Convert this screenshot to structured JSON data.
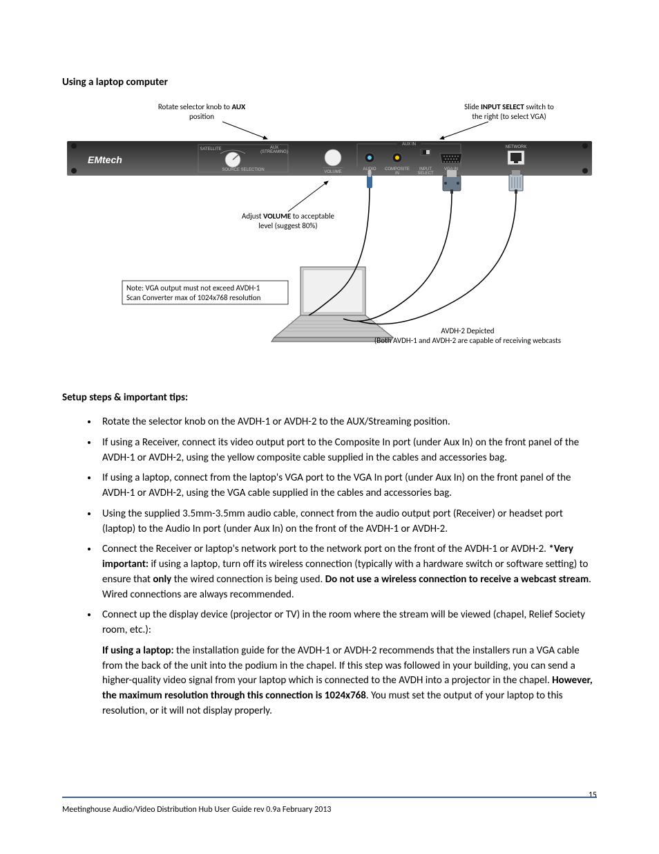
{
  "heading": "Using a laptop computer",
  "diagram": {
    "callouts": {
      "aux_line1": "Rotate selector knob to ",
      "aux_bold": "AUX",
      "aux_line2": "position",
      "input_line1": "Slide ",
      "input_bold": "INPUT SELECT",
      "input_line1b": " switch to",
      "input_line2": "the right (to select VGA)",
      "volume_line1": "Adjust ",
      "volume_bold": "VOLUME",
      "volume_line1b": " to acceptable",
      "volume_line2": "level (suggest 80%)",
      "note_line1": "Note:  VGA output must not exceed AVDH-1",
      "note_line2": "Scan Converter max of 1024x768 resolution",
      "depicted_title": "AVDH-2 Depicted",
      "depicted_sub": "(Both AVDH-1 and AVDH-2 are capable of receiving webcasts"
    },
    "panel": {
      "brand": "EMtech",
      "labels": {
        "satellite": "SATELLITE",
        "aux_streaming_top": "AUX",
        "aux_streaming_bot": "(STREAMING)",
        "source_selection": "SOURCE SELECTION",
        "volume": "VOLUME",
        "audio_in": "AUDIO",
        "audio_in2": "IN",
        "composite_in": "COMPOSITE",
        "composite_in2": "IN",
        "input_select": "INPUT",
        "input_select2": "SELECT",
        "aux_in": "AUX IN",
        "vga_in": "VGA IN",
        "network": "NETWORK"
      },
      "colors": {
        "panel_top": "#2a2a2a",
        "panel_bottom": "#6b6b6b",
        "knob": "#f0f0f0",
        "audio_jack": "#66ccff",
        "composite_jack": "#ffcc00",
        "rj45_body": "#2a2a2a",
        "rj45_light": "#e8e8e8",
        "vga_shell": "#6a7a8a",
        "switch_slot": "#1a1a1a",
        "cable": "#000000",
        "audio_plug": "#3a6aa0"
      }
    }
  },
  "steps_heading": "Setup steps & important tips:",
  "steps": [
    {
      "html": "Rotate the selector knob on the AVDH-1 or AVDH-2 to the AUX/Streaming position."
    },
    {
      "html": "If using a Receiver, connect its video output port to the Composite In port (under Aux In) on the front panel of the AVDH-1 or AVDH-2, using the yellow composite cable supplied in the cables and accessories bag."
    },
    {
      "html": "If using a laptop, connect from the laptop's VGA port to the VGA In port (under Aux In) on the front panel of the AVDH-1 or AVDH-2, using the VGA cable supplied in the cables and accessories bag."
    },
    {
      "html": "Using the supplied 3.5mm-3.5mm audio cable, connect from the audio output port (Receiver) or headset port (laptop) to the Audio In port (under Aux In) on the front of the AVDH-1 or AVDH-2."
    },
    {
      "html": "Connect the Receiver or laptop's network port to the network port on the front of the AVDH-1 or AVDH-2. <b>*Very important:</b> if using a laptop, turn off its wireless connection (typically with a hardware switch or software setting) to ensure that <b>only</b> the wired connection is being used. <b>Do not use a wireless connection to receive a webcast stream</b>. Wired connections are always recommended."
    },
    {
      "html": "Connect up the display device (projector or TV) in the room where the stream will be viewed (chapel, Relief Society room, etc.):"
    }
  ],
  "sub_block": "<b>If using a laptop:</b> the installation guide for the AVDH-1 or AVDH-2 recommends that the installers run a VGA cable from the back of the unit into the podium in the chapel. If this step was followed in your building, you can send a higher-quality video signal from your laptop which is connected to the AVDH into a projector in the chapel. <b>However, the maximum resolution through this connection is 1024x768</b>. You must set the output of your laptop to this resolution, or it will not display properly.",
  "footer_text": "Meetinghouse Audio/Video Distribution Hub User Guide rev 0.9a February 2013",
  "page_number": "15"
}
